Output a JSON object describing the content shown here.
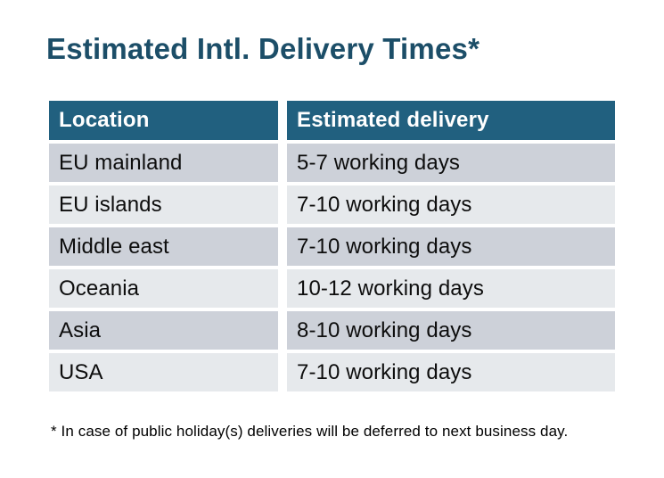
{
  "title": "Estimated Intl. Delivery Times*",
  "footnote": "* In case of public holiday(s) deliveries will be deferred to next business day.",
  "colors": {
    "page_bg": "#ffffff",
    "title": "#1c4e68",
    "header_bg": "#21607f",
    "header_text": "#ffffff",
    "row_odd_bg": "#cdd1d9",
    "row_even_bg": "#e6e9ec",
    "body_text": "#0d0d0d"
  },
  "table": {
    "headers": [
      "Location",
      "Estimated delivery"
    ],
    "rows": [
      {
        "location": "EU mainland",
        "delivery": "5-7 working days"
      },
      {
        "location": "EU islands",
        "delivery": "7-10 working days"
      },
      {
        "location": "Middle east",
        "delivery": "7-10 working days"
      },
      {
        "location": "Oceania",
        "delivery": "10-12 working days"
      },
      {
        "location": "Asia",
        "delivery": "8-10 working days"
      },
      {
        "location": "USA",
        "delivery": "7-10 working days"
      }
    ]
  },
  "chart_data": {
    "type": "table",
    "title": "Estimated Intl. Delivery Times*",
    "columns": [
      "Location",
      "Estimated delivery"
    ],
    "rows": [
      [
        "EU mainland",
        "5-7 working days"
      ],
      [
        "EU islands",
        "7-10 working days"
      ],
      [
        "Middle east",
        "7-10 working days"
      ],
      [
        "Oceania",
        "10-12 working days"
      ],
      [
        "Asia",
        "8-10 working days"
      ],
      [
        "USA",
        "7-10 working days"
      ]
    ],
    "footnote": "* In case of public holiday(s) deliveries will be deferred to next business day."
  }
}
